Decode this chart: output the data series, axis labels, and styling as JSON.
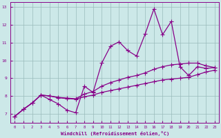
{
  "xlabel": "Windchill (Refroidissement éolien,°C)",
  "bg_color": "#cce8e8",
  "line_color": "#880088",
  "grid_color": "#99bbbb",
  "xlim": [
    -0.5,
    23.5
  ],
  "ylim": [
    6.5,
    13.3
  ],
  "xticks": [
    0,
    1,
    2,
    3,
    4,
    5,
    6,
    7,
    8,
    9,
    10,
    11,
    12,
    13,
    14,
    15,
    16,
    17,
    18,
    19,
    20,
    21,
    22,
    23
  ],
  "yticks": [
    7,
    8,
    9,
    10,
    11,
    12,
    13
  ],
  "line_smooth1_x": [
    0,
    1,
    2,
    3,
    4,
    5,
    6,
    7,
    8,
    9,
    10,
    11,
    12,
    13,
    14,
    15,
    16,
    17,
    18,
    19,
    20,
    21,
    22,
    23
  ],
  "line_smooth1_y": [
    6.85,
    7.25,
    7.6,
    8.05,
    8.0,
    7.9,
    7.85,
    7.82,
    7.95,
    8.05,
    8.2,
    8.3,
    8.4,
    8.5,
    8.6,
    8.7,
    8.8,
    8.9,
    8.95,
    9.0,
    9.05,
    9.2,
    9.35,
    9.45
  ],
  "line_smooth2_x": [
    0,
    1,
    2,
    3,
    4,
    5,
    6,
    7,
    8,
    9,
    10,
    11,
    12,
    13,
    14,
    15,
    16,
    17,
    18,
    19,
    20,
    21,
    22,
    23
  ],
  "line_smooth2_y": [
    6.85,
    7.25,
    7.6,
    8.05,
    8.0,
    7.92,
    7.88,
    7.84,
    8.1,
    8.25,
    8.55,
    8.75,
    8.9,
    9.05,
    9.15,
    9.3,
    9.5,
    9.65,
    9.75,
    9.8,
    9.85,
    9.85,
    9.7,
    9.6
  ],
  "line_spiky_x": [
    0,
    1,
    2,
    3,
    4,
    5,
    6,
    7,
    8,
    9,
    10,
    11,
    12,
    13,
    14,
    15,
    16,
    17,
    18,
    19,
    20,
    21,
    22,
    23
  ],
  "line_spiky_y": [
    6.85,
    7.25,
    7.6,
    8.05,
    7.8,
    7.55,
    7.2,
    7.05,
    8.55,
    8.2,
    9.85,
    10.8,
    11.05,
    10.55,
    10.25,
    11.5,
    12.9,
    11.45,
    12.2,
    9.65,
    9.15,
    9.65,
    9.55,
    9.6
  ],
  "marker": "+",
  "markersize": 4,
  "linewidth": 0.9
}
